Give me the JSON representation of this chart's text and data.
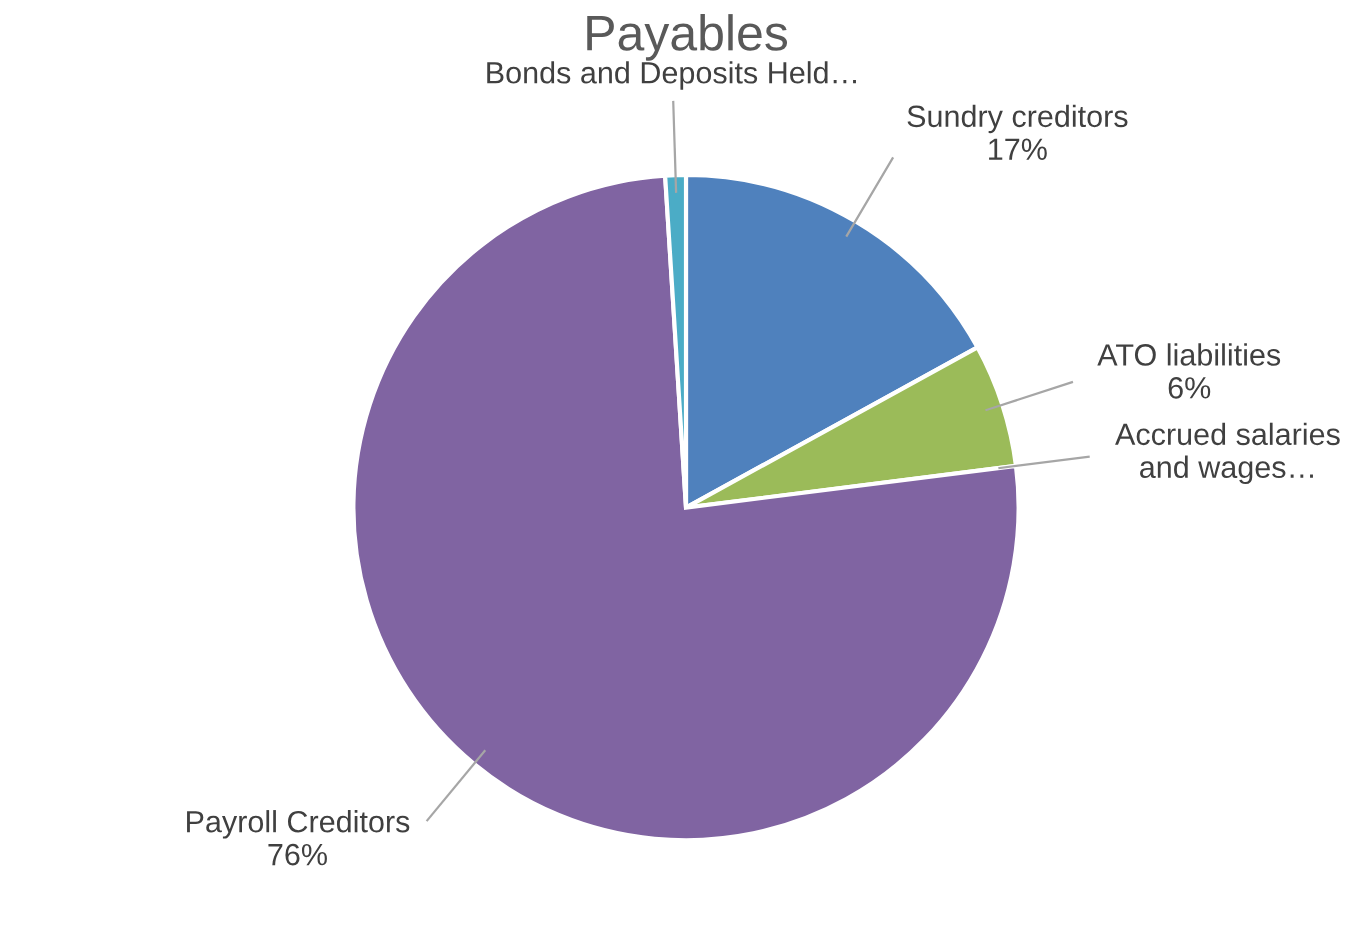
{
  "chart_data": {
    "type": "pie",
    "title": "Payables",
    "categories": [
      "Sundry creditors",
      "ATO liabilities",
      "Accrued salaries and wages…",
      "Payroll Creditors",
      "Bonds and Deposits Held…"
    ],
    "values": [
      17,
      6,
      0,
      76,
      1
    ],
    "value_labels": [
      "17%",
      "6%",
      null,
      "76%",
      null
    ],
    "colors": [
      "#4f81bd",
      "#9bbb59",
      "#c0504d",
      "#8064a2",
      "#4bacc6"
    ]
  }
}
